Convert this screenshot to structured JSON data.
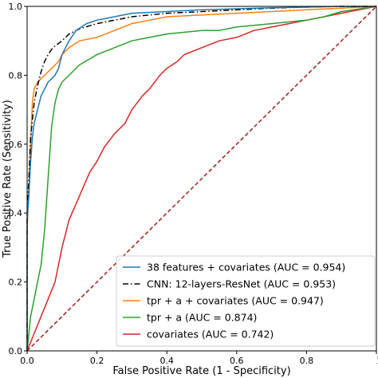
{
  "chart_data": {
    "type": "line",
    "title": "",
    "xlabel": "False Positive Rate (1 - Specificity)",
    "ylabel": "True Positive Rate (Sensitivity)",
    "xlim": [
      0,
      1
    ],
    "ylim": [
      0,
      1
    ],
    "x_ticks": [
      "0.0",
      "0.2",
      "0.4",
      "0.6",
      "0.8",
      "1.0"
    ],
    "y_ticks": [
      "0.0",
      "0.2",
      "0.4",
      "0.6",
      "0.8",
      "1.0"
    ],
    "grid": false,
    "legend_position": "lower-right",
    "series": [
      {
        "name": "38 features + covariates (AUC = 0.954)",
        "color": "#1f77b4",
        "style": "solid",
        "x": [
          0,
          0,
          0.005,
          0.01,
          0.015,
          0.02,
          0.03,
          0.04,
          0.05,
          0.06,
          0.07,
          0.08,
          0.09,
          0.1,
          0.12,
          0.14,
          0.17,
          0.2,
          0.25,
          0.3,
          0.4,
          0.5,
          0.6,
          0.7,
          0.8,
          0.9,
          1.0
        ],
        "y": [
          0,
          0.38,
          0.45,
          0.55,
          0.62,
          0.66,
          0.7,
          0.74,
          0.76,
          0.78,
          0.79,
          0.8,
          0.82,
          0.86,
          0.9,
          0.93,
          0.95,
          0.96,
          0.97,
          0.98,
          0.985,
          0.99,
          0.993,
          0.996,
          0.998,
          1.0,
          1.0
        ]
      },
      {
        "name": "CNN: 12-layers-ResNet (AUC = 0.953)",
        "color": "#000000",
        "style": "dashdot",
        "x": [
          0,
          0,
          0.005,
          0.01,
          0.02,
          0.03,
          0.04,
          0.05,
          0.06,
          0.07,
          0.08,
          0.1,
          0.12,
          0.15,
          0.2,
          0.25,
          0.3,
          0.35,
          0.4,
          0.5,
          0.6,
          0.7,
          0.8,
          0.9,
          1.0
        ],
        "y": [
          0,
          0.4,
          0.5,
          0.62,
          0.72,
          0.77,
          0.81,
          0.84,
          0.86,
          0.875,
          0.885,
          0.9,
          0.92,
          0.935,
          0.95,
          0.96,
          0.97,
          0.975,
          0.98,
          0.985,
          0.99,
          0.995,
          0.998,
          1.0,
          1.0
        ]
      },
      {
        "name": "tpr + a + covariates (AUC = 0.947)",
        "color": "#ff7f0e",
        "style": "solid",
        "x": [
          0,
          0,
          0.005,
          0.01,
          0.015,
          0.02,
          0.03,
          0.05,
          0.07,
          0.09,
          0.1,
          0.12,
          0.15,
          0.2,
          0.25,
          0.3,
          0.35,
          0.4,
          0.5,
          0.6,
          0.7,
          0.8,
          0.9,
          1.0
        ],
        "y": [
          0,
          0.35,
          0.48,
          0.6,
          0.72,
          0.76,
          0.78,
          0.8,
          0.82,
          0.84,
          0.86,
          0.88,
          0.9,
          0.91,
          0.93,
          0.95,
          0.96,
          0.97,
          0.975,
          0.98,
          0.985,
          0.99,
          0.995,
          1.0
        ]
      },
      {
        "name": "tpr + a (AUC = 0.874)",
        "color": "#2ca02c",
        "style": "solid",
        "x": [
          0,
          0.01,
          0.02,
          0.03,
          0.04,
          0.05,
          0.06,
          0.07,
          0.08,
          0.09,
          0.1,
          0.12,
          0.15,
          0.2,
          0.25,
          0.3,
          0.35,
          0.4,
          0.5,
          0.55,
          0.6,
          0.7,
          0.8,
          0.85,
          0.9,
          1.0
        ],
        "y": [
          0,
          0.1,
          0.15,
          0.2,
          0.25,
          0.35,
          0.5,
          0.65,
          0.72,
          0.76,
          0.78,
          0.8,
          0.83,
          0.86,
          0.88,
          0.9,
          0.91,
          0.92,
          0.93,
          0.93,
          0.94,
          0.95,
          0.96,
          0.97,
          0.985,
          1.0
        ]
      },
      {
        "name": "covariates (AUC = 0.742)",
        "color": "#d62728",
        "style": "solid",
        "x": [
          0,
          0.02,
          0.04,
          0.06,
          0.08,
          0.1,
          0.12,
          0.15,
          0.18,
          0.2,
          0.22,
          0.25,
          0.28,
          0.3,
          0.33,
          0.35,
          0.38,
          0.4,
          0.43,
          0.45,
          0.5,
          0.55,
          0.6,
          0.65,
          0.7,
          0.75,
          0.8,
          0.85,
          0.9,
          0.95,
          1.0
        ],
        "y": [
          0,
          0.05,
          0.1,
          0.15,
          0.2,
          0.3,
          0.38,
          0.45,
          0.52,
          0.55,
          0.59,
          0.63,
          0.66,
          0.7,
          0.74,
          0.76,
          0.8,
          0.82,
          0.84,
          0.86,
          0.88,
          0.9,
          0.91,
          0.93,
          0.94,
          0.95,
          0.96,
          0.97,
          0.98,
          0.99,
          1.0
        ]
      },
      {
        "name": "",
        "color": "#a01c1c",
        "style": "dashed",
        "x": [
          0,
          1
        ],
        "y": [
          0,
          1
        ]
      }
    ]
  }
}
